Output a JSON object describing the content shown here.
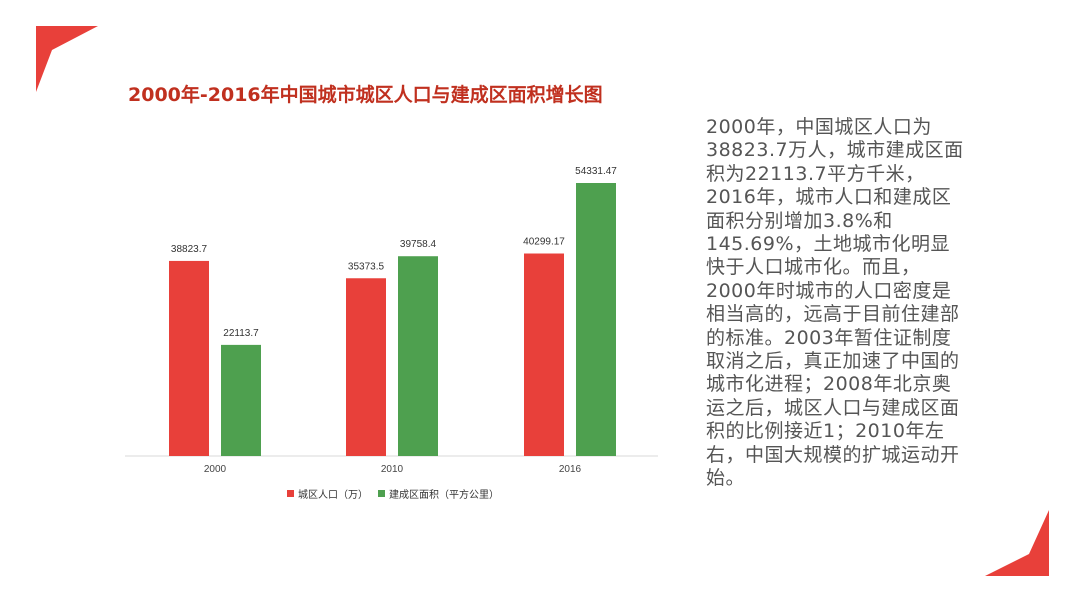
{
  "title": "2000年-2016年中国城市城区人口与建成区面积增长图",
  "description": "2000年，中国城区人口为38823.7万人，城市建成区面积为22113.7平方千米，2016年，城市人口和建成区面积分别增加3.8%和145.69%，土地城市化明显快于人口城市化。而且，2000年时城市的人口密度是相当高的，远高于目前住建部的标准。2003年暂住证制度取消之后，真正加速了中国的城市化进程；2008年北京奥运之后，城区人口与建成区面积的比例接近1；2010年左右，中国大规模的扩城运动开始。",
  "colors": {
    "population": "#e8403a",
    "area": "#4ea04f",
    "title": "#c0301f",
    "accent": "#e8403a"
  },
  "chart_data": {
    "type": "bar",
    "categories": [
      "2000",
      "2010",
      "2016"
    ],
    "series": [
      {
        "name": "城区人口（万）",
        "values": [
          38823.7,
          35373.5,
          40299.17
        ],
        "labels": [
          "38823.7",
          "35373.5",
          "40299.17"
        ]
      },
      {
        "name": "建成区面积（平方公里）",
        "values": [
          22113.7,
          39758.4,
          54331.47
        ],
        "labels": [
          "22113.7",
          "39758.4",
          "54331.47"
        ]
      }
    ],
    "ylim": [
      0,
      60000
    ],
    "grid": false,
    "legend": "bottom"
  }
}
